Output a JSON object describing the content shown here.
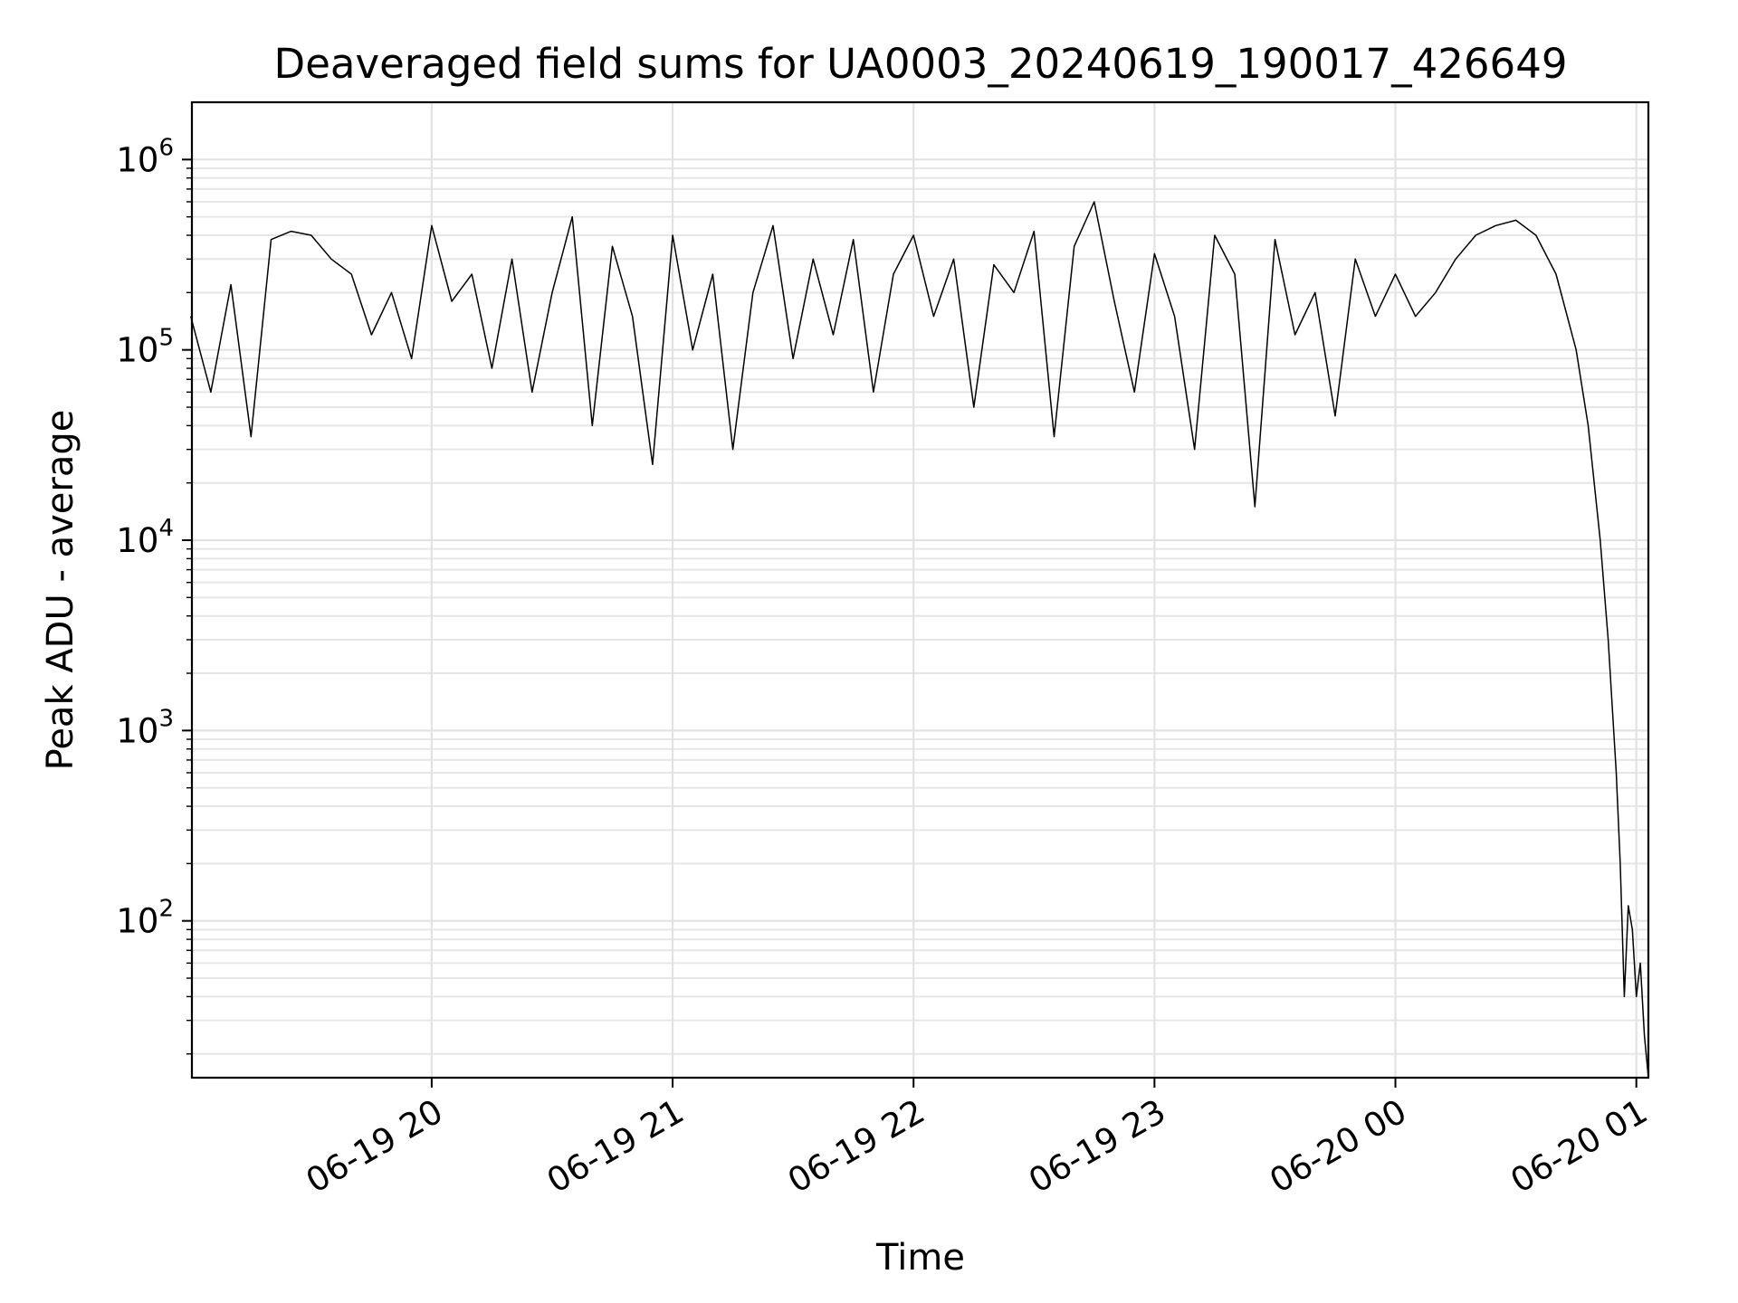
{
  "chart_data": {
    "type": "line",
    "title": "Deaveraged field sums for UA0003_20240619_190017_426649",
    "xlabel": "Time",
    "ylabel": "Peak ADU - average",
    "y_scale": "log",
    "ylim": [
      15,
      2000000
    ],
    "xlim": [
      "2024-06-19 19:00:17",
      "2024-06-20 01:03:00"
    ],
    "grid": true,
    "line_color": "#000000",
    "x_ticks": [
      {
        "label": "06-19 20",
        "t": "2024-06-19 20:00"
      },
      {
        "label": "06-19 21",
        "t": "2024-06-19 21:00"
      },
      {
        "label": "06-19 22",
        "t": "2024-06-19 22:00"
      },
      {
        "label": "06-19 23",
        "t": "2024-06-19 23:00"
      },
      {
        "label": "06-20 00",
        "t": "2024-06-20 00:00"
      },
      {
        "label": "06-20 01",
        "t": "2024-06-20 01:00"
      }
    ],
    "y_ticks": [
      {
        "base": "10",
        "exp": "2",
        "value": 100
      },
      {
        "base": "10",
        "exp": "3",
        "value": 1000
      },
      {
        "base": "10",
        "exp": "4",
        "value": 10000
      },
      {
        "base": "10",
        "exp": "5",
        "value": 100000
      },
      {
        "base": "10",
        "exp": "6",
        "value": 1000000
      }
    ],
    "series": [
      {
        "x": [
          "2024-06-19 19:00",
          "2024-06-19 19:05",
          "2024-06-19 19:10",
          "2024-06-19 19:15",
          "2024-06-19 19:20",
          "2024-06-19 19:25",
          "2024-06-19 19:30",
          "2024-06-19 19:35",
          "2024-06-19 19:40",
          "2024-06-19 19:45",
          "2024-06-19 19:50",
          "2024-06-19 19:55",
          "2024-06-19 20:00",
          "2024-06-19 20:05",
          "2024-06-19 20:10",
          "2024-06-19 20:15",
          "2024-06-19 20:20",
          "2024-06-19 20:25",
          "2024-06-19 20:30",
          "2024-06-19 20:35",
          "2024-06-19 20:40",
          "2024-06-19 20:45",
          "2024-06-19 20:50",
          "2024-06-19 20:55",
          "2024-06-19 21:00",
          "2024-06-19 21:05",
          "2024-06-19 21:10",
          "2024-06-19 21:15",
          "2024-06-19 21:20",
          "2024-06-19 21:25",
          "2024-06-19 21:30",
          "2024-06-19 21:35",
          "2024-06-19 21:40",
          "2024-06-19 21:45",
          "2024-06-19 21:50",
          "2024-06-19 21:55",
          "2024-06-19 22:00",
          "2024-06-19 22:05",
          "2024-06-19 22:10",
          "2024-06-19 22:15",
          "2024-06-19 22:20",
          "2024-06-19 22:25",
          "2024-06-19 22:30",
          "2024-06-19 22:35",
          "2024-06-19 22:40",
          "2024-06-19 22:45",
          "2024-06-19 22:50",
          "2024-06-19 22:55",
          "2024-06-19 23:00",
          "2024-06-19 23:05",
          "2024-06-19 23:10",
          "2024-06-19 23:15",
          "2024-06-19 23:20",
          "2024-06-19 23:25",
          "2024-06-19 23:30",
          "2024-06-19 23:35",
          "2024-06-19 23:40",
          "2024-06-19 23:45",
          "2024-06-19 23:50",
          "2024-06-19 23:55",
          "2024-06-20 00:00",
          "2024-06-20 00:05",
          "2024-06-20 00:10",
          "2024-06-20 00:15",
          "2024-06-20 00:20",
          "2024-06-20 00:25",
          "2024-06-20 00:30",
          "2024-06-20 00:35",
          "2024-06-20 00:40",
          "2024-06-20 00:45",
          "2024-06-20 00:48",
          "2024-06-20 00:51",
          "2024-06-20 00:53",
          "2024-06-20 00:55",
          "2024-06-20 00:56",
          "2024-06-20 00:57",
          "2024-06-20 00:58",
          "2024-06-20 00:59",
          "2024-06-20 01:00",
          "2024-06-20 01:01",
          "2024-06-20 01:02",
          "2024-06-20 01:03"
        ],
        "y": [
          150000,
          60000,
          220000,
          35000,
          380000,
          420000,
          400000,
          300000,
          250000,
          120000,
          200000,
          90000,
          450000,
          180000,
          250000,
          80000,
          300000,
          60000,
          200000,
          500000,
          40000,
          350000,
          150000,
          25000,
          400000,
          100000,
          250000,
          30000,
          200000,
          450000,
          90000,
          300000,
          120000,
          380000,
          60000,
          250000,
          400000,
          150000,
          300000,
          50000,
          280000,
          200000,
          420000,
          35000,
          350000,
          600000,
          180000,
          60000,
          320000,
          150000,
          30000,
          400000,
          250000,
          15000,
          380000,
          120000,
          200000,
          45000,
          300000,
          150000,
          250000,
          150000,
          200000,
          300000,
          400000,
          450000,
          480000,
          400000,
          250000,
          100000,
          40000,
          10000,
          3000,
          600,
          200,
          40,
          120,
          90,
          40,
          60,
          25,
          15
        ]
      }
    ]
  }
}
